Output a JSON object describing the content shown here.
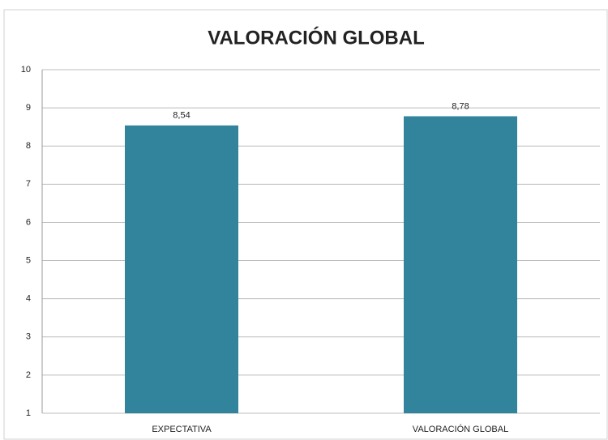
{
  "chart_data": {
    "type": "bar",
    "title": "VALORACIÓN GLOBAL",
    "categories": [
      "EXPECTATIVA",
      "VALORACIÓN GLOBAL"
    ],
    "values": [
      8.54,
      8.78
    ],
    "value_labels": [
      "8,54",
      "8,78"
    ],
    "color": "#31849b",
    "ylim": [
      1,
      10
    ],
    "yticks": [
      1,
      2,
      3,
      4,
      5,
      6,
      7,
      8,
      9,
      10
    ],
    "grid": true
  }
}
